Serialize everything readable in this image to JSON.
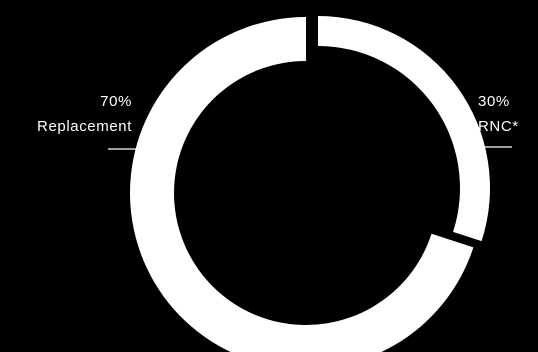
{
  "chart_data": {
    "type": "pie",
    "style": "donut",
    "segments": [
      {
        "label": "RNC*",
        "value": 30,
        "value_label": "30%"
      },
      {
        "label": "Replacement",
        "value": 70,
        "value_label": "70%"
      }
    ],
    "title": "",
    "legend": "none",
    "colors": {
      "background": "#000000",
      "ring": "#ffffff",
      "text": "#ffffff",
      "leader_line": "#ffffff"
    }
  }
}
